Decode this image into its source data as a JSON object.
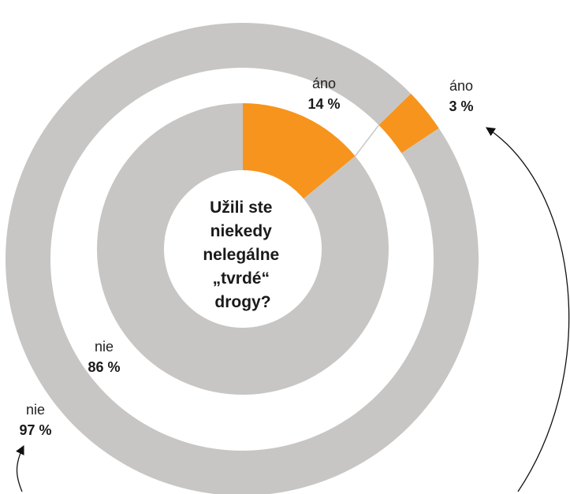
{
  "chart_data": {
    "type": "pie",
    "subtype": "nested-donut",
    "title_lines": [
      "Užili ste",
      "niekedy",
      "nelegálne",
      "„tvrdé“",
      "drogy?"
    ],
    "rings": [
      {
        "ring": "inner",
        "slices": [
          {
            "category": "áno",
            "label": "áno",
            "value_label": "14 %",
            "value": 14,
            "color": "#f7941d"
          },
          {
            "category": "nie",
            "label": "nie",
            "value_label": "86 %",
            "value": 86,
            "color": "#c8c6c4"
          }
        ]
      },
      {
        "ring": "outer",
        "slices": [
          {
            "category": "áno",
            "label": "áno",
            "value_label": "3 %",
            "value": 3,
            "color": "#f7941d"
          },
          {
            "category": "nie",
            "label": "nie",
            "value_label": "97 %",
            "value": 97,
            "color": "#c8c6c4"
          }
        ]
      }
    ]
  }
}
